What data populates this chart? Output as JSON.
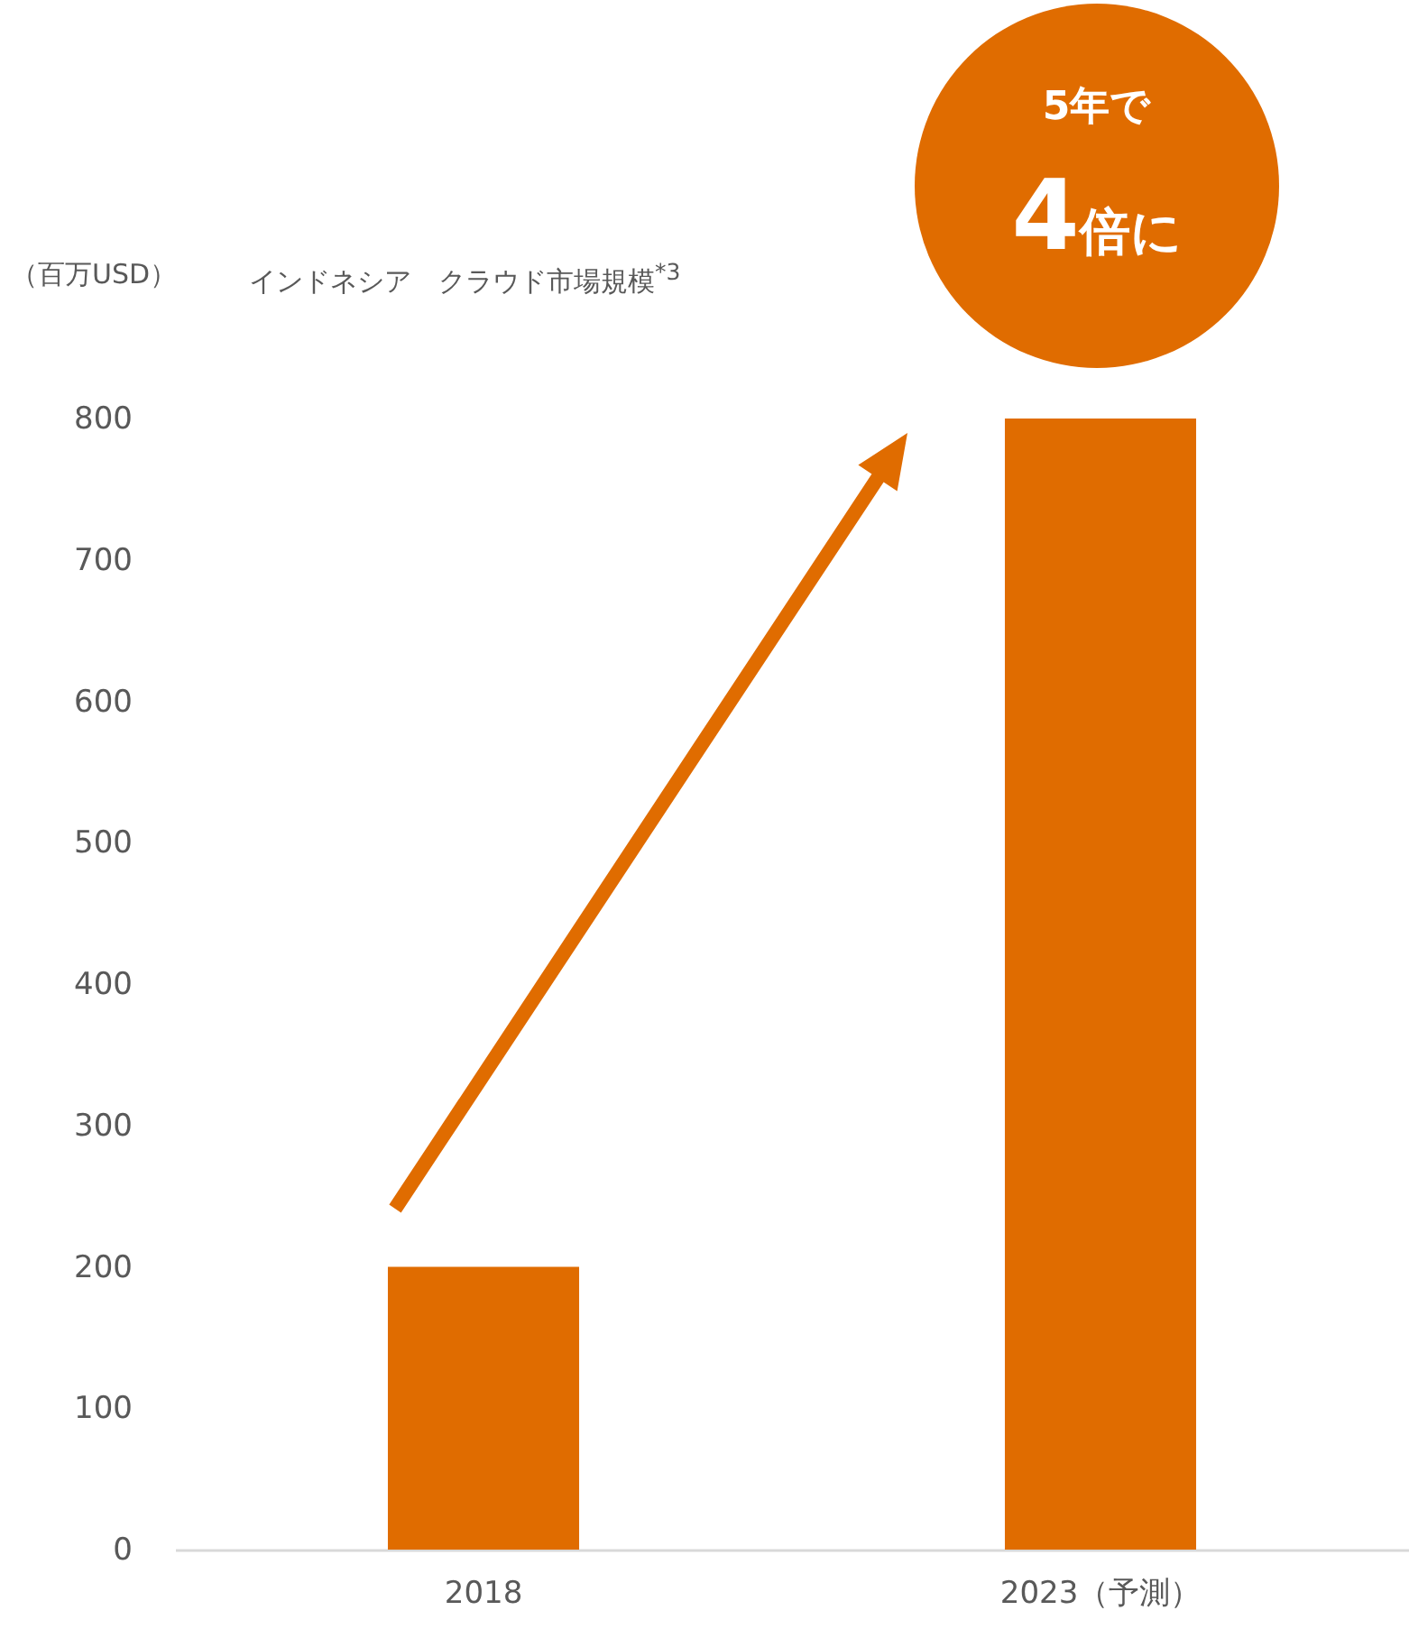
{
  "chart_data": {
    "type": "bar",
    "title": "インドネシア　クラウド市場規模$^{*3}$",
    "ylabel": "（百万USD）",
    "categories": [
      "2018",
      "2023（予測）"
    ],
    "values": [
      200,
      800
    ],
    "color": "#e06c00",
    "ylim": [
      0,
      800
    ],
    "yticks": [
      0,
      100,
      200,
      300,
      400,
      500,
      600,
      700,
      800
    ],
    "grid": false,
    "annotations": [
      "5年で",
      "4倍に"
    ]
  }
}
